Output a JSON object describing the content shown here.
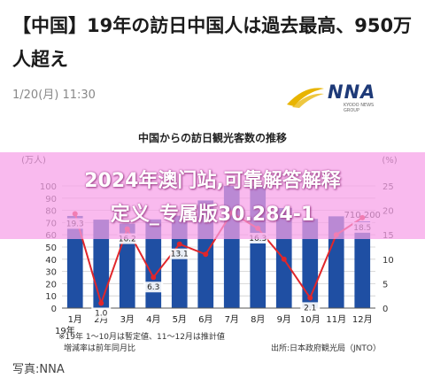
{
  "article": {
    "headline": "【中国】19年の訪日中国人は過去最高、950万人超え",
    "datetime": "1/20(月) 11:30",
    "photo_credit": "写真:NNA"
  },
  "logo": {
    "text": "NNA",
    "subtext": "KYODO NEWS GROUP",
    "color": "#1e3a78",
    "accent": "#e8b400"
  },
  "banner": {
    "line1": "2024年澳门站,可靠解答解释",
    "line2": "定义_专属版30.284-1"
  },
  "chart_data": {
    "type": "bar",
    "title": "中国からの訪日観光客数の推移",
    "left_unit": "(万人)",
    "right_unit": "(%)",
    "categories": [
      "1月",
      "2月",
      "3月",
      "4月",
      "5月",
      "6月",
      "7月",
      "8月",
      "9月",
      "10月",
      "11月",
      "12月"
    ],
    "year_label": "19年",
    "y_ticks": [
      "0",
      "10",
      "20",
      "30",
      "40",
      "50",
      "60",
      "70",
      "80",
      "90",
      "100"
    ],
    "right_ticks": [
      "0",
      "5",
      "10",
      "15",
      "20",
      "25"
    ],
    "ylim": [
      0,
      100
    ],
    "y2lim": [
      0,
      25
    ],
    "series": [
      {
        "name": "訪日客数",
        "values": [
          75.4,
          72.4,
          69.1,
          72.6,
          75.6,
          88.1,
          105.1,
          100.1,
          81.9,
          73.0,
          75.1,
          71.0
        ]
      },
      {
        "name": "増減率",
        "values": [
          19.3,
          1.0,
          16.2,
          6.3,
          13.1,
          11.0,
          19.5,
          16.3,
          10.0,
          2.1,
          15.0,
          18.5
        ]
      }
    ],
    "bar_labels": [
      "",
      "",
      "",
      "",
      "",
      "",
      "",
      "",
      "",
      "",
      "",
      "710,200"
    ],
    "point_labels": [
      "19.3",
      "1.0",
      "16.2",
      "6.3",
      "13.1",
      "",
      "",
      "16.3",
      "",
      "2.1",
      "",
      "18.5"
    ],
    "notes": [
      "※19年 1～10月は暫定値、11～12月は推計値",
      "増減率は前年同月比"
    ],
    "source": "出所:日本政府観光局（JNTO）",
    "bar_color": "#1f4fa3",
    "line_color": "#e0262b"
  }
}
